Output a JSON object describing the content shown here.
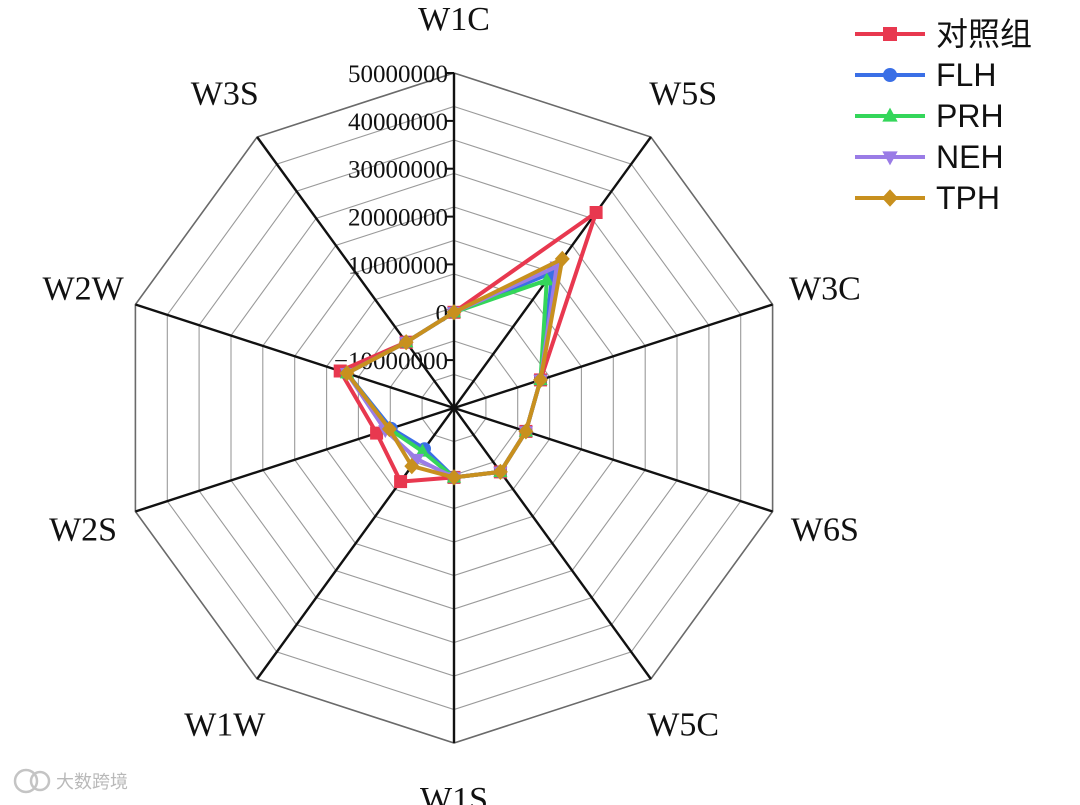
{
  "chart_data": {
    "type": "radar",
    "title": "",
    "axes": [
      "W1C",
      "W5S",
      "W3C",
      "W6S",
      "W5C",
      "W1S",
      "W1W",
      "W2S",
      "W2W",
      "W3S"
    ],
    "radial_range": [
      -20000000,
      50000000
    ],
    "radial_ticks": [
      -10000000,
      0,
      10000000,
      20000000,
      30000000,
      40000000,
      50000000
    ],
    "radial_tick_labels": [
      "−10000000",
      "0",
      "10000000",
      "20000000",
      "30000000",
      "40000000",
      "50000000"
    ],
    "grid_rings": 10,
    "legend_position": "top-right",
    "series": [
      {
        "name": "对照组",
        "color": "#e8384f",
        "marker": "square",
        "values": [
          0,
          30500000,
          -1000000,
          -4200000,
          -3500000,
          -5500000,
          -1000000,
          -3000000,
          5000000,
          -3000000
        ]
      },
      {
        "name": "FLH",
        "color": "#3a6fe6",
        "marker": "circle",
        "values": [
          0,
          15000000,
          -1000000,
          -4200000,
          -3500000,
          -5500000,
          -9500000,
          -6200000,
          3500000,
          -3000000
        ]
      },
      {
        "name": "PRH",
        "color": "#34d65a",
        "marker": "triangle-up",
        "values": [
          0,
          13000000,
          -1000000,
          -4200000,
          -3500000,
          -5500000,
          -8800000,
          -5800000,
          3500000,
          -3000000
        ]
      },
      {
        "name": "NEH",
        "color": "#9a7ce6",
        "marker": "triangle-down",
        "values": [
          0,
          16500000,
          -1000000,
          -4200000,
          -3500000,
          -5500000,
          -6800000,
          -4900000,
          3500000,
          -3000000
        ]
      },
      {
        "name": "TPH",
        "color": "#c8901e",
        "marker": "diamond",
        "values": [
          0,
          18500000,
          -1000000,
          -4200000,
          -3500000,
          -5500000,
          -5000000,
          -5800000,
          3500000,
          -3000000
        ]
      }
    ]
  },
  "watermark": {
    "text": "大数跨境"
  }
}
